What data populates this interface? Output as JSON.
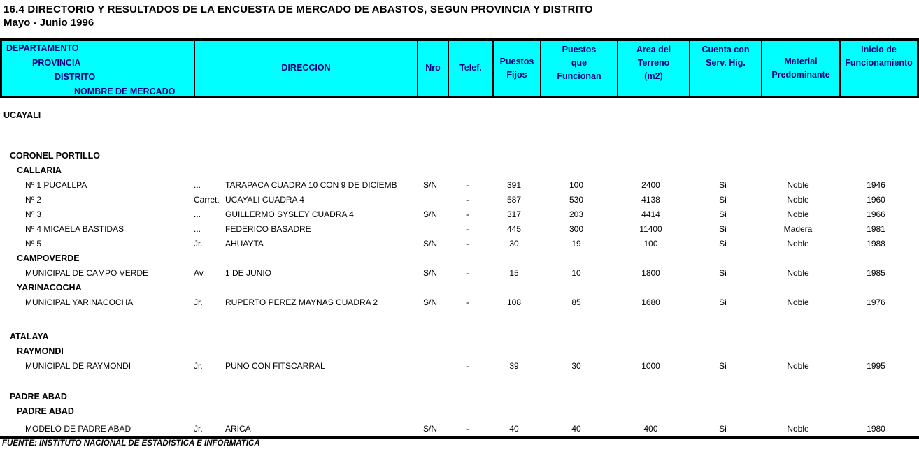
{
  "title": {
    "line1": "16.4 DIRECTORIO Y RESULTADOS DE LA ENCUESTA DE MERCADO DE ABASTOS, SEGUN PROVINCIA Y DISTRITO",
    "line2": "Mayo - Junio 1996"
  },
  "colors": {
    "header_bg": "#00ffff",
    "header_text": "#000080",
    "line": "#000000"
  },
  "table": {
    "header": {
      "name_lines": [
        "DEPARTAMENTO",
        "PROVINCIA",
        "DISTRITO",
        "NOMBRE DE MERCADO"
      ],
      "direccion": "DIRECCION",
      "nro": "Nro",
      "telef": "Telef.",
      "puestos_fijos": "Puestos\nFijos",
      "puestos_funcionan": "Puestos\nque\nFuncionan",
      "area_terreno": "Area del\nTerreno\n(m2)",
      "serv_hig": "Cuenta con\nServ. Hig.",
      "material": "Material\nPredominante",
      "inicio": "Inicio de\nFuncionamiento"
    },
    "rows": [
      {
        "type": "department",
        "label": "UCAYALI",
        "gap": 15
      },
      {
        "type": "province",
        "label": "CORONEL PORTILLO",
        "gap": 37
      },
      {
        "type": "district",
        "label": "CALLARIA"
      },
      {
        "type": "market",
        "name": "Nº 1 PUCALLPA",
        "prefix": "...",
        "street": "TARAPACA CUADRA 10 CON 9 DE DICIEMB",
        "nro": "S/N",
        "telef": "-",
        "puestos_fijos": "391",
        "puestos_funcionan": "100",
        "area_terreno": "2400",
        "serv_hig": "Si",
        "material": "Noble",
        "inicio": "1946"
      },
      {
        "type": "market",
        "name": "Nº 2",
        "prefix": "Carret.",
        "street": "UCAYALI CUADRA 4",
        "nro": "",
        "telef": "-",
        "puestos_fijos": "587",
        "puestos_funcionan": "530",
        "area_terreno": "4138",
        "serv_hig": "Si",
        "material": "Noble",
        "inicio": "1960"
      },
      {
        "type": "market",
        "name": "Nº 3",
        "prefix": "...",
        "street": "GUILLERMO SYSLEY CUADRA 4",
        "nro": "S/N",
        "telef": "-",
        "puestos_fijos": "317",
        "puestos_funcionan": "203",
        "area_terreno": "4414",
        "serv_hig": "Si",
        "material": "Noble",
        "inicio": "1966"
      },
      {
        "type": "market",
        "name": "Nº 4 MICAELA BASTIDAS",
        "prefix": "...",
        "street": "FEDERICO BASADRE",
        "nro": "",
        "telef": "-",
        "puestos_fijos": "445",
        "puestos_funcionan": "300",
        "area_terreno": "11400",
        "serv_hig": "Si",
        "material": "Madera",
        "inicio": "1981"
      },
      {
        "type": "market",
        "name": "Nº 5",
        "prefix": "Jr.",
        "street": "AHUAYTA",
        "nro": "S/N",
        "telef": "-",
        "puestos_fijos": "30",
        "puestos_funcionan": "19",
        "area_terreno": "100",
        "serv_hig": "Si",
        "material": "Noble",
        "inicio": "1988"
      },
      {
        "type": "district",
        "label": "CAMPOVERDE"
      },
      {
        "type": "market",
        "name": "MUNICIPAL DE CAMPO VERDE",
        "prefix": "Av.",
        "street": "1 DE JUNIO",
        "nro": "S/N",
        "telef": "-",
        "puestos_fijos": "15",
        "puestos_funcionan": "10",
        "area_terreno": "1800",
        "serv_hig": "Si",
        "material": "Noble",
        "inicio": "1985"
      },
      {
        "type": "district",
        "label": "YARINACOCHA"
      },
      {
        "type": "market",
        "name": "MUNICIPAL YARINACOCHA",
        "prefix": "Jr.",
        "street": "RUPERTO PEREZ MAYNAS CUADRA 2",
        "nro": "S/N",
        "telef": "-",
        "puestos_fijos": "108",
        "puestos_funcionan": "85",
        "area_terreno": "1680",
        "serv_hig": "Si",
        "material": "Noble",
        "inicio": "1976"
      },
      {
        "type": "province",
        "label": "ATALAYA",
        "gap": 28
      },
      {
        "type": "district",
        "label": "RAYMONDI"
      },
      {
        "type": "market",
        "name": "MUNICIPAL DE RAYMONDI",
        "prefix": "Jr.",
        "street": "PUNO CON FITSCARRAL",
        "nro": "",
        "telef": "-",
        "puestos_fijos": "39",
        "puestos_funcionan": "30",
        "area_terreno": "1000",
        "serv_hig": "Si",
        "material": "Noble",
        "inicio": "1995"
      },
      {
        "type": "province",
        "label": "PADRE ABAD",
        "gap": 23
      },
      {
        "type": "district",
        "label": "PADRE ABAD"
      },
      {
        "type": "market",
        "name": "MODELO DE PADRE ABAD",
        "prefix": "Jr.",
        "street": "ARICA",
        "nro": "S/N",
        "telef": "-",
        "puestos_fijos": "40",
        "puestos_funcionan": "40",
        "area_terreno": "400",
        "serv_hig": "Si",
        "material": "Noble",
        "inicio": "1980",
        "gap": 4
      }
    ]
  },
  "footer": {
    "source": "FUENTE: INSTITUTO NACIONAL DE ESTADISTICA E INFORMATICA"
  }
}
